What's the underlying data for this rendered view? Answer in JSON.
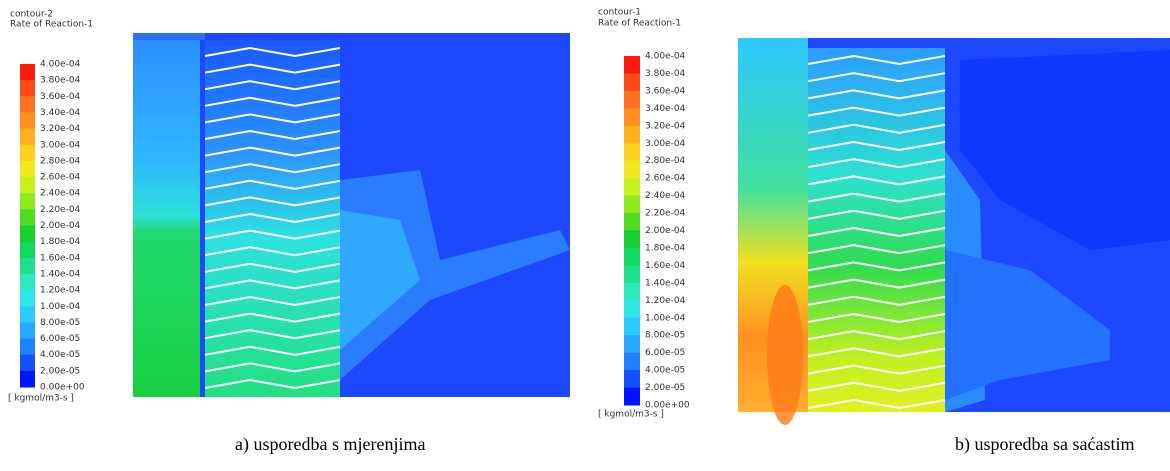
{
  "panels": [
    {
      "legend": {
        "title": "contour-2",
        "quantity": "Rate of Reaction-1",
        "labels": [
          "4.00e-04",
          "3.80e-04",
          "3.60e-04",
          "3.40e-04",
          "3.20e-04",
          "3.00e-04",
          "2.80e-04",
          "2.60e-04",
          "2.40e-04",
          "2.20e-04",
          "2.00e-04",
          "1.80e-04",
          "1.60e-04",
          "1.40e-04",
          "1.20e-04",
          "1.00e-04",
          "8.00e-05",
          "6.00e-05",
          "4.00e-05",
          "2.00e-05",
          "0.00e+00"
        ],
        "unit": "[ kgmol/m3-s ]"
      },
      "caption": "a) usporedba s mjerenjima"
    },
    {
      "legend": {
        "title": "contour-1",
        "quantity": "Rate of Reaction-1",
        "labels": [
          "4.00e-04",
          "3.80e-04",
          "3.60e-04",
          "3.40e-04",
          "3.20e-04",
          "3.00e-04",
          "2.80e-04",
          "2.60e-04",
          "2.40e-04",
          "2.20e-04",
          "2.00e-04",
          "1.80e-04",
          "1.60e-04",
          "1.40e-04",
          "1.20e-04",
          "1.00e-04",
          "8.00e-05",
          "6.00e-05",
          "4.00e-05",
          "2.00e-05",
          "0.00e+00"
        ],
        "unit": "[ kgmol/m3-s ]"
      },
      "caption": "b) usporedba sa saćastim"
    }
  ],
  "colormap": [
    "#ff1a10",
    "#ff4a18",
    "#ff7020",
    "#ff9020",
    "#ffb020",
    "#ffd020",
    "#f0e820",
    "#c8f020",
    "#90e81e",
    "#50dc20",
    "#18d030",
    "#10d860",
    "#20e090",
    "#2ee8c0",
    "#2ee8e8",
    "#2ccaff",
    "#28a8ff",
    "#2080ff",
    "#1450ff",
    "#0014ff"
  ]
}
